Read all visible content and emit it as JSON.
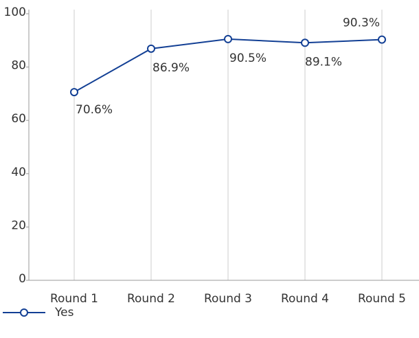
{
  "chart_data": {
    "type": "line",
    "categories": [
      "Round 1",
      "Round 2",
      "Round 3",
      "Round 4",
      "Round 5"
    ],
    "series": [
      {
        "name": "Yes",
        "color": "#123f94",
        "values": [
          70.6,
          86.9,
          90.5,
          89.1,
          90.3
        ],
        "value_labels": [
          "70.6%",
          "86.9%",
          "90.5%",
          "89.1%",
          "90.3%"
        ]
      }
    ],
    "ylim": [
      0,
      100
    ],
    "yticks": [
      0,
      20,
      40,
      60,
      80,
      100
    ],
    "grid": true,
    "legend": "bottom-left"
  }
}
